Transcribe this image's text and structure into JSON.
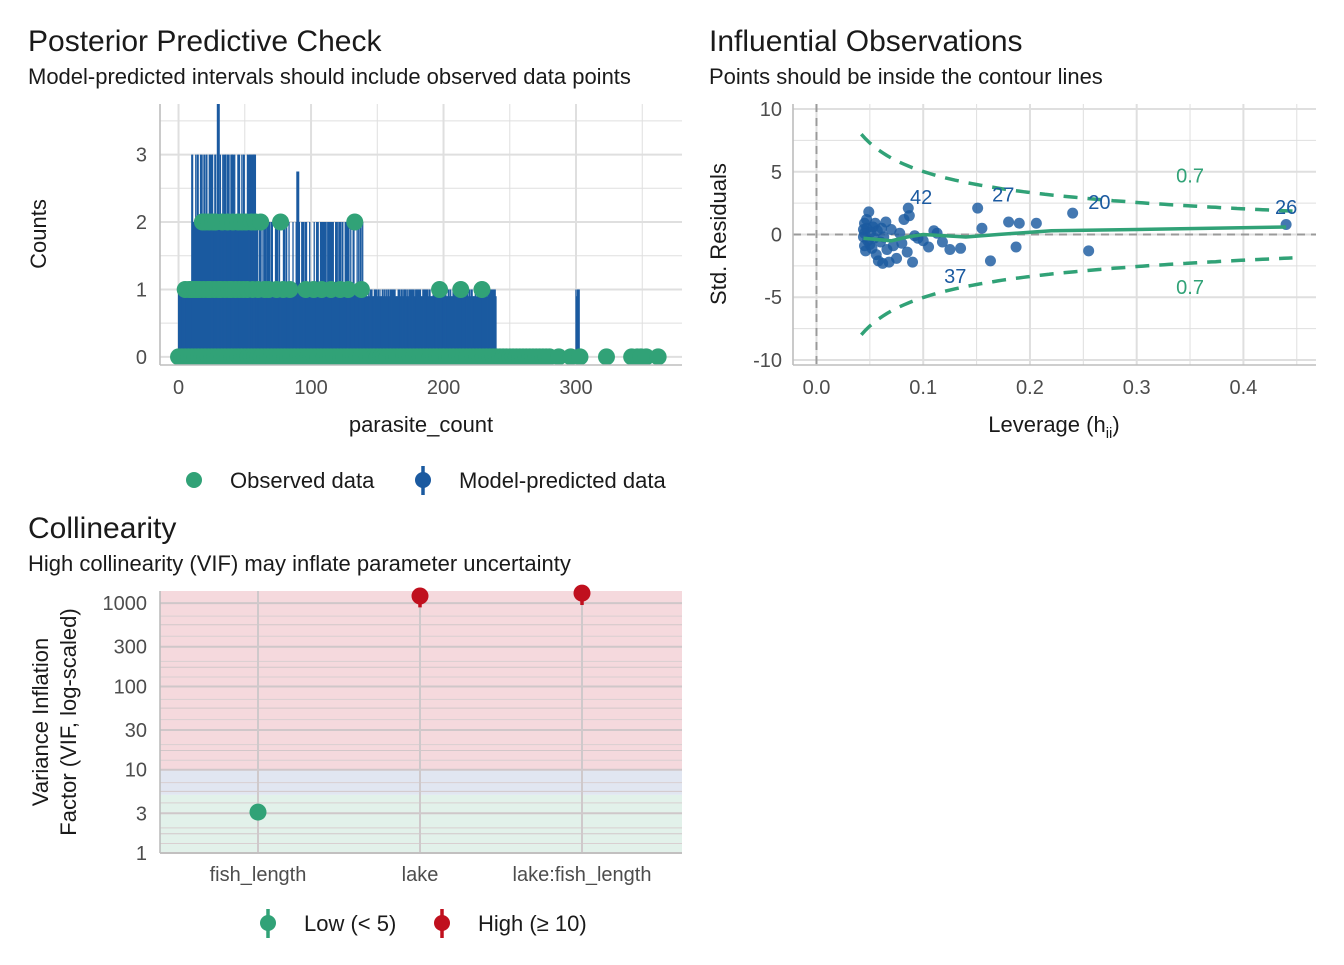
{
  "chart_data": [
    {
      "type": "bar",
      "title": "Posterior Predictive Check",
      "subtitle": "Model-predicted intervals should include observed data points",
      "xlabel": "parasite_count",
      "ylabel": "Counts",
      "xlim": [
        -14,
        380
      ],
      "ylim": [
        -0.12,
        3.75
      ],
      "xticks": [
        "0",
        "100",
        "200",
        "300"
      ],
      "xtick_values": [
        0,
        100,
        200,
        300
      ],
      "yticks": [
        "0",
        "1",
        "2",
        "3"
      ],
      "ytick_values": [
        0,
        1,
        2,
        3
      ],
      "legend": {
        "position": "bottom",
        "entries": [
          {
            "label": "Observed data",
            "color": "#31a277",
            "shape": "dot"
          },
          {
            "label": "Model-predicted data",
            "color": "#1b5aa0",
            "shape": "pointrange"
          }
        ]
      },
      "predicted_max_count": [
        {
          "from": 0,
          "to": 10,
          "max": 1
        },
        {
          "from": 10,
          "to": 60,
          "max": 3
        },
        {
          "from": 60,
          "to": 100,
          "max": 2
        },
        {
          "from": 100,
          "to": 140,
          "max": 2
        },
        {
          "from": 140,
          "to": 200,
          "max": 1
        },
        {
          "from": 200,
          "to": 240,
          "max": 1
        },
        {
          "from": 240,
          "to": 280,
          "max": 0
        },
        {
          "from": 300,
          "to": 303,
          "max": 1
        }
      ],
      "predicted_peaks": [
        {
          "x": 25,
          "y": 3
        },
        {
          "x": 30,
          "y": 3.75
        },
        {
          "x": 35,
          "y": 3
        },
        {
          "x": 41,
          "y": 3
        },
        {
          "x": 53,
          "y": 3
        },
        {
          "x": 57,
          "y": 3
        },
        {
          "x": 65,
          "y": 2
        },
        {
          "x": 90,
          "y": 2.75
        },
        {
          "x": 128,
          "y": 2
        }
      ],
      "observed": {
        "count_3": [],
        "count_2": [
          18,
          20,
          23,
          26,
          28,
          33,
          37,
          41,
          45,
          48,
          51,
          55,
          58,
          62,
          77,
          133
        ],
        "count_1": [
          5,
          8,
          10,
          12,
          14,
          16,
          19,
          22,
          24,
          27,
          30,
          32,
          35,
          38,
          40,
          43,
          46,
          49,
          52,
          56,
          60,
          65,
          68,
          74,
          79,
          84,
          96,
          102,
          108,
          115,
          122,
          128,
          138,
          197,
          213,
          229
        ],
        "count_0_ranges": [
          [
            0,
            282
          ]
        ],
        "count_0_points": [
          287,
          296,
          303,
          323,
          342,
          346,
          349,
          353,
          362
        ]
      }
    },
    {
      "type": "scatter",
      "title": "Influential Observations",
      "subtitle": "Points should be inside the contour lines",
      "xlabel": "Leverage (h",
      "xlabel_sub": "ii",
      "xlabel_close": ")",
      "ylabel": "Std. Residuals",
      "xlim": [
        -0.022,
        0.468
      ],
      "ylim": [
        -10.4,
        10.4
      ],
      "xticks": [
        "0.0",
        "0.1",
        "0.2",
        "0.3",
        "0.4"
      ],
      "xtick_values": [
        0,
        0.1,
        0.2,
        0.3,
        0.4
      ],
      "yticks": [
        "-10",
        "-5",
        "0",
        "5",
        "10"
      ],
      "ytick_values": [
        -10,
        -5,
        0,
        5,
        10
      ],
      "contour_label": "0.7",
      "contour_label_upper": {
        "x": 0.35,
        "y": 4.7
      },
      "contour_label_lower": {
        "x": 0.35,
        "y": -4.2
      },
      "points": [
        [
          0.044,
          0.4
        ],
        [
          0.044,
          -0.2
        ],
        [
          0.045,
          0.9
        ],
        [
          0.045,
          -0.9
        ],
        [
          0.045,
          0.1
        ],
        [
          0.046,
          -1.3
        ],
        [
          0.047,
          1.2
        ],
        [
          0.047,
          0.5
        ],
        [
          0.048,
          -0.5
        ],
        [
          0.049,
          1.8
        ],
        [
          0.05,
          -0.8
        ],
        [
          0.051,
          0.2
        ],
        [
          0.052,
          -1.1
        ],
        [
          0.053,
          0.6
        ],
        [
          0.054,
          -0.3
        ],
        [
          0.055,
          0.9
        ],
        [
          0.056,
          -1.6
        ],
        [
          0.057,
          0.3
        ],
        [
          0.058,
          -2.1
        ],
        [
          0.06,
          -0.6
        ],
        [
          0.061,
          0.5
        ],
        [
          0.062,
          -2.3
        ],
        [
          0.063,
          -0.2
        ],
        [
          0.065,
          1.0
        ],
        [
          0.066,
          -1.2
        ],
        [
          0.068,
          -2.2
        ],
        [
          0.07,
          0.4
        ],
        [
          0.072,
          -0.9
        ],
        [
          0.075,
          -1.9
        ],
        [
          0.078,
          0.1
        ],
        [
          0.08,
          -0.7
        ],
        [
          0.082,
          1.2
        ],
        [
          0.085,
          -1.4
        ],
        [
          0.086,
          2.1
        ],
        [
          0.087,
          1.5
        ],
        [
          0.09,
          -2.2
        ],
        [
          0.092,
          -0.1
        ],
        [
          0.095,
          -0.3
        ],
        [
          0.1,
          -0.5
        ],
        [
          0.105,
          -1.0
        ],
        [
          0.11,
          0.3
        ],
        [
          0.113,
          0.1
        ],
        [
          0.118,
          -0.6
        ],
        [
          0.125,
          -1.2
        ],
        [
          0.135,
          -1.1
        ],
        [
          0.151,
          2.1
        ],
        [
          0.155,
          0.5
        ],
        [
          0.163,
          -2.1
        ],
        [
          0.18,
          1.0
        ],
        [
          0.19,
          0.9
        ],
        [
          0.187,
          -1.0
        ],
        [
          0.206,
          0.9
        ],
        [
          0.24,
          1.7
        ],
        [
          0.255,
          -1.3
        ],
        [
          0.44,
          0.8
        ]
      ],
      "smooth": [
        [
          0.044,
          -0.3
        ],
        [
          0.07,
          -0.5
        ],
        [
          0.085,
          -0.2
        ],
        [
          0.1,
          0
        ],
        [
          0.12,
          -0.1
        ],
        [
          0.14,
          -0.2
        ],
        [
          0.17,
          0
        ],
        [
          0.22,
          0.3
        ],
        [
          0.3,
          0.4
        ],
        [
          0.44,
          0.6
        ]
      ],
      "labels": [
        {
          "text": "42",
          "x": 0.098,
          "y": 3.0
        },
        {
          "text": "27",
          "x": 0.175,
          "y": 3.2
        },
        {
          "text": "20",
          "x": 0.265,
          "y": 2.6
        },
        {
          "text": "26",
          "x": 0.44,
          "y": 2.2
        },
        {
          "text": "37",
          "x": 0.13,
          "y": -3.3
        }
      ]
    },
    {
      "type": "scatter",
      "title": "Collinearity",
      "subtitle": "High collinearity (VIF) may inflate parameter uncertainty",
      "ylabel_line1": "Variance Inflation",
      "ylabel_line2": "Factor (VIF, log-scaled)",
      "yscale": "log",
      "ylim": [
        1,
        1400
      ],
      "categories": [
        "fish_length",
        "lake",
        "lake:fish_length"
      ],
      "yticks": [
        "1",
        "3",
        "10",
        "30",
        "100",
        "300",
        "1000"
      ],
      "ytick_values": [
        1,
        3,
        10,
        30,
        100,
        300,
        1000
      ],
      "series": [
        {
          "name": "Low (< 5)",
          "color": "#31a277",
          "points": [
            {
              "category": "fish_length",
              "vif": 3.1,
              "lo": 2.6,
              "hi": 3.8
            }
          ]
        },
        {
          "name": "High (≥ 10)",
          "color": "#c0101e",
          "points": [
            {
              "category": "lake",
              "vif": 1220,
              "lo": 890,
              "hi": 1350
            },
            {
              "category": "lake:fish_length",
              "vif": 1320,
              "lo": 950,
              "hi": 1400
            }
          ]
        }
      ],
      "zones": [
        {
          "from": 1,
          "to": 5,
          "color": "#e2f1ea"
        },
        {
          "from": 5,
          "to": 10,
          "color": "#e1e6f1"
        },
        {
          "from": 10,
          "to": 1400,
          "color": "#f5d9dd"
        }
      ]
    }
  ],
  "colors": {
    "green": "#31a277",
    "blue": "#1b5aa0",
    "red": "#c0101e",
    "grid": "#dfdfdf",
    "text": "#1a1a1a",
    "tick": "#4d4d4d"
  }
}
